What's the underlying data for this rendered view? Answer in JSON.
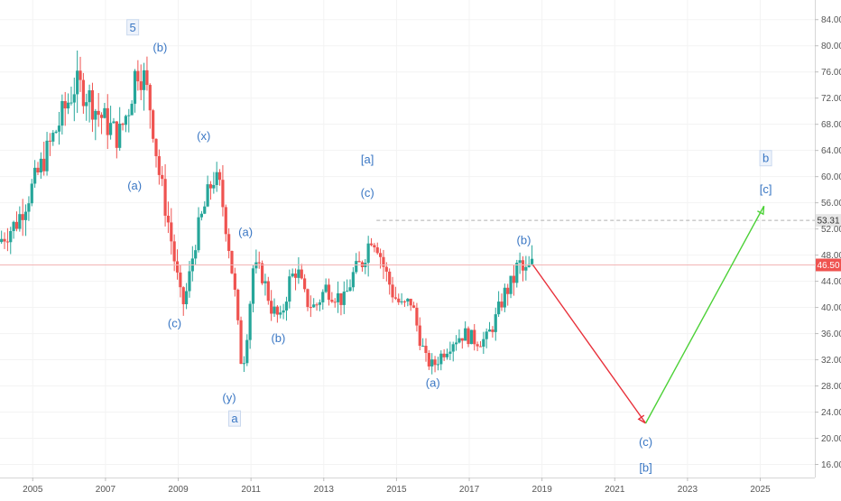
{
  "chart_data": {
    "type": "candlestick",
    "x_range": [
      2004.1,
      2026.5
    ],
    "ylim": [
      14,
      87
    ],
    "xticks": [
      2005,
      2007,
      2009,
      2011,
      2013,
      2015,
      2017,
      2019,
      2021,
      2023,
      2025
    ],
    "xtick_labels": [
      "2005",
      "2007",
      "2009",
      "2011",
      "2013",
      "2015",
      "2017",
      "2019",
      "2021",
      "2023",
      "2025"
    ],
    "yticks": [
      16,
      20,
      24,
      28,
      32,
      36,
      40,
      44,
      48,
      52,
      56,
      60,
      64,
      68,
      72,
      76,
      80,
      84
    ],
    "ytick_labels": [
      "16.00",
      "20.00",
      "24.00",
      "28.00",
      "32.00",
      "36.00",
      "40.00",
      "44.00",
      "48.00",
      "52.00",
      "56.00",
      "60.00",
      "64.00",
      "68.00",
      "72.00",
      "76.00",
      "80.00",
      "84.00"
    ],
    "price_path": [
      [
        2004.1,
        50
      ],
      [
        2004.6,
        53
      ],
      [
        2005.0,
        58
      ],
      [
        2005.3,
        62
      ],
      [
        2005.6,
        66
      ],
      [
        2005.9,
        70
      ],
      [
        2006.2,
        74
      ],
      [
        2006.5,
        73
      ],
      [
        2006.8,
        70
      ],
      [
        2007.1,
        68
      ],
      [
        2007.4,
        66
      ],
      [
        2007.7,
        71
      ],
      [
        2007.9,
        77
      ],
      [
        2008.1,
        75
      ],
      [
        2008.3,
        70
      ],
      [
        2008.5,
        61
      ],
      [
        2008.8,
        52
      ],
      [
        2009.0,
        45
      ],
      [
        2009.15,
        40
      ],
      [
        2009.3,
        43
      ],
      [
        2009.5,
        50
      ],
      [
        2009.8,
        56
      ],
      [
        2010.0,
        60
      ],
      [
        2010.2,
        58
      ],
      [
        2010.4,
        51
      ],
      [
        2010.6,
        42
      ],
      [
        2010.8,
        30
      ],
      [
        2010.95,
        37
      ],
      [
        2011.1,
        46
      ],
      [
        2011.35,
        45
      ],
      [
        2011.6,
        40
      ],
      [
        2011.85,
        38
      ],
      [
        2012.1,
        44
      ],
      [
        2012.3,
        46
      ],
      [
        2012.55,
        41
      ],
      [
        2012.8,
        40
      ],
      [
        2013.1,
        43
      ],
      [
        2013.35,
        42
      ],
      [
        2013.6,
        41
      ],
      [
        2013.85,
        45
      ],
      [
        2014.1,
        47
      ],
      [
        2014.35,
        51
      ],
      [
        2014.5,
        50
      ],
      [
        2014.7,
        46
      ],
      [
        2014.95,
        42
      ],
      [
        2015.2,
        40
      ],
      [
        2015.45,
        41
      ],
      [
        2015.65,
        36
      ],
      [
        2015.85,
        32
      ],
      [
        2016.05,
        31
      ],
      [
        2016.3,
        33
      ],
      [
        2016.6,
        35
      ],
      [
        2016.9,
        36
      ],
      [
        2017.2,
        35
      ],
      [
        2017.5,
        35
      ],
      [
        2017.75,
        38
      ],
      [
        2018.0,
        42
      ],
      [
        2018.25,
        44
      ],
      [
        2018.4,
        47
      ],
      [
        2018.55,
        45
      ],
      [
        2018.75,
        46.5
      ]
    ],
    "last_price": 46.5,
    "last_price_label": "46.50",
    "reference_price": 53.31,
    "reference_price_label": "53.31",
    "projection": [
      [
        2018.75,
        46.5
      ],
      [
        2021.85,
        22.3
      ],
      [
        2025.1,
        55.5
      ]
    ],
    "projection_colors": [
      "#e8303a",
      "#4cd137"
    ],
    "colors": {
      "up": "#26a69a",
      "down": "#ef5350",
      "label": "#3a77c4"
    },
    "wave_labels": [
      {
        "text": "5",
        "x": 2007.75,
        "y": 82.2,
        "boxed": true
      },
      {
        "text": "(b)",
        "x": 2008.5,
        "y": 79.1
      },
      {
        "text": "(a)",
        "x": 2007.8,
        "y": 58.0
      },
      {
        "text": "(x)",
        "x": 2009.7,
        "y": 65.6
      },
      {
        "text": "(c)",
        "x": 2008.9,
        "y": 37.0
      },
      {
        "text": "(a)",
        "x": 2010.85,
        "y": 50.9
      },
      {
        "text": "(y)",
        "x": 2010.4,
        "y": 25.6
      },
      {
        "text": "a",
        "x": 2010.55,
        "y": 22.4,
        "boxed": true
      },
      {
        "text": "(b)",
        "x": 2011.75,
        "y": 34.7
      },
      {
        "text": "[a]",
        "x": 2014.2,
        "y": 62.0
      },
      {
        "text": "(c)",
        "x": 2014.2,
        "y": 56.9
      },
      {
        "text": "(a)",
        "x": 2016.0,
        "y": 27.9
      },
      {
        "text": "(b)",
        "x": 2018.5,
        "y": 49.7
      },
      {
        "text": "(c)",
        "x": 2021.85,
        "y": 18.8
      },
      {
        "text": "[b]",
        "x": 2021.85,
        "y": 14.9
      },
      {
        "text": "b",
        "x": 2025.15,
        "y": 62.2,
        "boxed": true
      },
      {
        "text": "[c]",
        "x": 2025.15,
        "y": 57.5
      }
    ]
  }
}
